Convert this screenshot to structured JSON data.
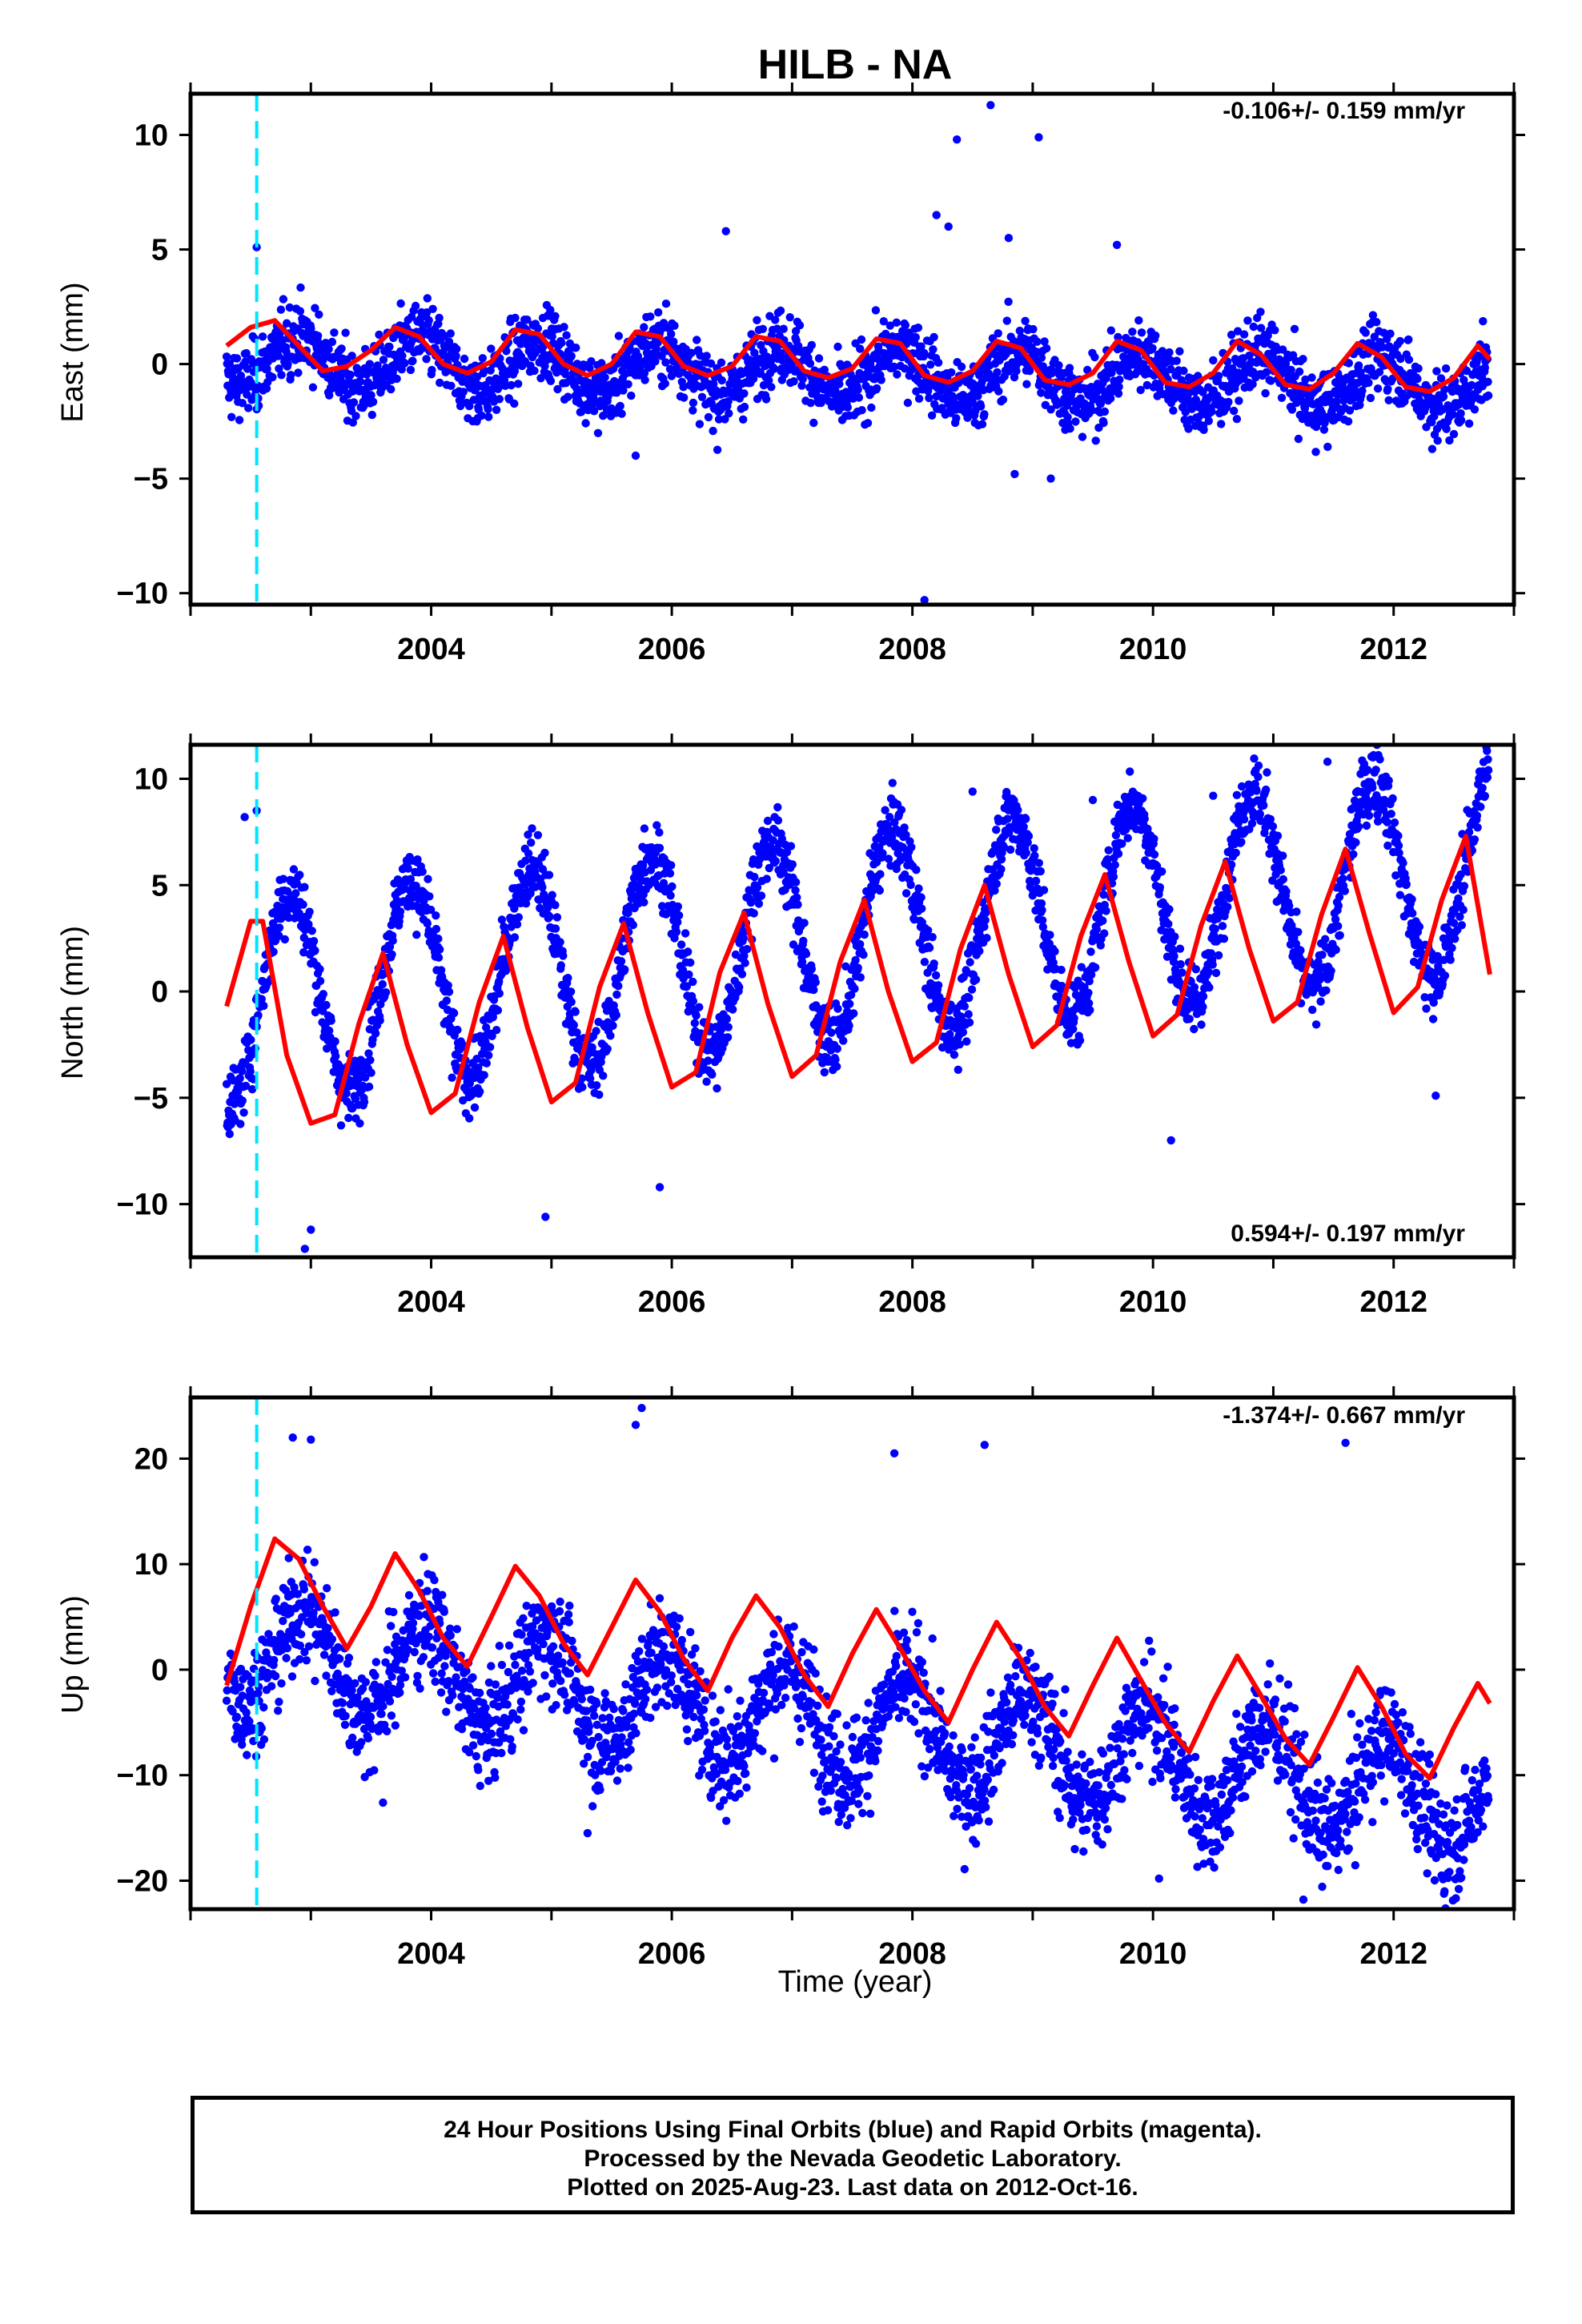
{
  "chart_data": {
    "title": "HILB - NA",
    "xlabel": "Time (year)",
    "x_ticks": [
      "2004",
      "2006",
      "2008",
      "2010",
      "2012"
    ],
    "xlim": [
      2002.0,
      2013.0
    ],
    "vertical_marker_year": 2002.55,
    "colors": {
      "points": "#0000ff",
      "fit": "#ff0000",
      "marker": "#00e5ff"
    },
    "panels": [
      {
        "type": "scatter",
        "name": "east",
        "ylabel": "East (mm)",
        "ylim": [
          -10.5,
          11.8
        ],
        "y_ticks": [
          "10",
          "5",
          "0",
          "−5",
          "−10"
        ],
        "rate": "-0.106+/- 0.159 mm/yr",
        "fit_curve": [
          [
            2002.3,
            0.8
          ],
          [
            2002.5,
            1.6
          ],
          [
            2002.7,
            1.9
          ],
          [
            2002.9,
            0.8
          ],
          [
            2003.1,
            -0.3
          ],
          [
            2003.3,
            -0.1
          ],
          [
            2003.5,
            0.6
          ],
          [
            2003.7,
            1.6
          ],
          [
            2003.9,
            1.2
          ],
          [
            2004.1,
            0.0
          ],
          [
            2004.3,
            -0.4
          ],
          [
            2004.5,
            0.1
          ],
          [
            2004.7,
            1.5
          ],
          [
            2004.9,
            1.3
          ],
          [
            2005.1,
            0.0
          ],
          [
            2005.3,
            -0.5
          ],
          [
            2005.5,
            0.0
          ],
          [
            2005.7,
            1.4
          ],
          [
            2005.9,
            1.2
          ],
          [
            2006.1,
            -0.1
          ],
          [
            2006.3,
            -0.5
          ],
          [
            2006.5,
            -0.1
          ],
          [
            2006.7,
            1.2
          ],
          [
            2006.9,
            1.0
          ],
          [
            2007.1,
            -0.3
          ],
          [
            2007.3,
            -0.6
          ],
          [
            2007.5,
            -0.2
          ],
          [
            2007.7,
            1.1
          ],
          [
            2007.9,
            0.9
          ],
          [
            2008.1,
            -0.5
          ],
          [
            2008.3,
            -0.8
          ],
          [
            2008.5,
            -0.3
          ],
          [
            2008.7,
            1.0
          ],
          [
            2008.9,
            0.7
          ],
          [
            2009.1,
            -0.7
          ],
          [
            2009.3,
            -0.9
          ],
          [
            2009.5,
            -0.4
          ],
          [
            2009.7,
            1.0
          ],
          [
            2009.9,
            0.6
          ],
          [
            2010.1,
            -0.8
          ],
          [
            2010.3,
            -1.0
          ],
          [
            2010.5,
            -0.4
          ],
          [
            2010.7,
            1.0
          ],
          [
            2010.9,
            0.4
          ],
          [
            2011.1,
            -0.9
          ],
          [
            2011.3,
            -1.1
          ],
          [
            2011.5,
            -0.4
          ],
          [
            2011.7,
            0.9
          ],
          [
            2011.9,
            0.3
          ],
          [
            2012.1,
            -1.0
          ],
          [
            2012.3,
            -1.2
          ],
          [
            2012.5,
            -0.6
          ],
          [
            2012.7,
            0.8
          ],
          [
            2012.8,
            0.2
          ]
        ],
        "series_model": {
          "mean": 0.2,
          "trend": -0.106,
          "amplitude": 1.1,
          "phase": 0.65,
          "scatter": 1.2
        },
        "outliers": [
          [
            2002.55,
            5.1
          ],
          [
            2008.1,
            -10.3
          ],
          [
            2008.37,
            9.8
          ],
          [
            2008.65,
            11.3
          ],
          [
            2009.05,
            9.9
          ],
          [
            2008.2,
            6.5
          ],
          [
            2008.3,
            6.0
          ],
          [
            2008.8,
            5.5
          ],
          [
            2009.7,
            5.2
          ],
          [
            2006.45,
            5.8
          ],
          [
            2005.7,
            -4.0
          ],
          [
            2008.85,
            -4.8
          ],
          [
            2009.15,
            -5.0
          ]
        ]
      },
      {
        "type": "scatter",
        "name": "north",
        "ylabel": "North (mm)",
        "ylim": [
          -12.5,
          11.6
        ],
        "y_ticks": [
          "10",
          "5",
          "0",
          "−5",
          "−10"
        ],
        "rate": "0.594+/- 0.197 mm/yr",
        "fit_curve": [
          [
            2002.3,
            -0.7
          ],
          [
            2002.5,
            3.3
          ],
          [
            2002.6,
            3.3
          ],
          [
            2002.8,
            -3.0
          ],
          [
            2003.0,
            -6.2
          ],
          [
            2003.2,
            -5.8
          ],
          [
            2003.4,
            -1.5
          ],
          [
            2003.6,
            1.8
          ],
          [
            2003.8,
            -2.5
          ],
          [
            2004.0,
            -5.7
          ],
          [
            2004.2,
            -4.8
          ],
          [
            2004.4,
            -0.5
          ],
          [
            2004.6,
            2.6
          ],
          [
            2004.8,
            -1.7
          ],
          [
            2005.0,
            -5.2
          ],
          [
            2005.2,
            -4.3
          ],
          [
            2005.4,
            0.2
          ],
          [
            2005.6,
            3.2
          ],
          [
            2005.8,
            -1.0
          ],
          [
            2006.0,
            -4.5
          ],
          [
            2006.2,
            -3.8
          ],
          [
            2006.4,
            0.9
          ],
          [
            2006.6,
            3.7
          ],
          [
            2006.8,
            -0.6
          ],
          [
            2007.0,
            -4.0
          ],
          [
            2007.2,
            -3.0
          ],
          [
            2007.4,
            1.4
          ],
          [
            2007.6,
            4.3
          ],
          [
            2007.8,
            0.0
          ],
          [
            2008.0,
            -3.3
          ],
          [
            2008.2,
            -2.4
          ],
          [
            2008.4,
            2.0
          ],
          [
            2008.6,
            5.0
          ],
          [
            2008.8,
            0.8
          ],
          [
            2009.0,
            -2.6
          ],
          [
            2009.2,
            -1.6
          ],
          [
            2009.4,
            2.6
          ],
          [
            2009.6,
            5.5
          ],
          [
            2009.8,
            1.4
          ],
          [
            2010.0,
            -2.1
          ],
          [
            2010.2,
            -1.1
          ],
          [
            2010.4,
            3.1
          ],
          [
            2010.6,
            6.1
          ],
          [
            2010.8,
            2.0
          ],
          [
            2011.0,
            -1.4
          ],
          [
            2011.2,
            -0.5
          ],
          [
            2011.4,
            3.6
          ],
          [
            2011.6,
            6.7
          ],
          [
            2011.8,
            2.7
          ],
          [
            2012.0,
            -1.0
          ],
          [
            2012.2,
            0.2
          ],
          [
            2012.4,
            4.3
          ],
          [
            2012.6,
            7.3
          ],
          [
            2012.8,
            0.8
          ]
        ],
        "series_model": {
          "mean": -0.5,
          "trend": 0.594,
          "amplitude": 4.8,
          "phase": 0.58,
          "scatter": 1.3
        },
        "outliers": [
          [
            2002.45,
            8.2
          ],
          [
            2002.55,
            8.5
          ],
          [
            2011.45,
            10.8
          ],
          [
            2008.5,
            9.4
          ],
          [
            2009.5,
            9.0
          ],
          [
            2010.5,
            9.2
          ],
          [
            2002.95,
            -12.1
          ],
          [
            2003.0,
            -11.2
          ],
          [
            2004.95,
            -10.6
          ],
          [
            2005.9,
            -9.2
          ],
          [
            2012.35,
            -4.9
          ],
          [
            2010.15,
            -7.0
          ]
        ]
      },
      {
        "type": "scatter",
        "name": "up",
        "ylabel": "Up (mm)",
        "ylim": [
          -22.7,
          25.8
        ],
        "y_ticks": [
          "20",
          "10",
          "0",
          "−10",
          "−20"
        ],
        "rate": "-1.374+/- 0.667 mm/yr",
        "fit_curve": [
          [
            2002.3,
            -1.5
          ],
          [
            2002.5,
            6.0
          ],
          [
            2002.7,
            12.4
          ],
          [
            2002.9,
            10.5
          ],
          [
            2003.1,
            6.0
          ],
          [
            2003.3,
            2.0
          ],
          [
            2003.5,
            6.0
          ],
          [
            2003.7,
            11.0
          ],
          [
            2003.9,
            7.5
          ],
          [
            2004.1,
            3.0
          ],
          [
            2004.3,
            0.3
          ],
          [
            2004.5,
            5.0
          ],
          [
            2004.7,
            9.8
          ],
          [
            2004.9,
            7.0
          ],
          [
            2005.1,
            2.5
          ],
          [
            2005.3,
            -0.5
          ],
          [
            2005.5,
            4.0
          ],
          [
            2005.7,
            8.5
          ],
          [
            2005.9,
            5.5
          ],
          [
            2006.1,
            1.0
          ],
          [
            2006.3,
            -2.0
          ],
          [
            2006.5,
            3.0
          ],
          [
            2006.7,
            7.0
          ],
          [
            2006.9,
            4.0
          ],
          [
            2007.1,
            -0.5
          ],
          [
            2007.3,
            -3.5
          ],
          [
            2007.5,
            1.5
          ],
          [
            2007.7,
            5.7
          ],
          [
            2007.9,
            2.0
          ],
          [
            2008.1,
            -2.0
          ],
          [
            2008.3,
            -5.0
          ],
          [
            2008.5,
            0.0
          ],
          [
            2008.7,
            4.5
          ],
          [
            2008.9,
            1.0
          ],
          [
            2009.1,
            -3.5
          ],
          [
            2009.3,
            -6.3
          ],
          [
            2009.5,
            -1.5
          ],
          [
            2009.7,
            3.0
          ],
          [
            2009.9,
            -1.0
          ],
          [
            2010.1,
            -5.0
          ],
          [
            2010.3,
            -7.8
          ],
          [
            2010.5,
            -3.0
          ],
          [
            2010.7,
            1.3
          ],
          [
            2010.9,
            -2.5
          ],
          [
            2011.1,
            -6.5
          ],
          [
            2011.3,
            -9.0
          ],
          [
            2011.5,
            -4.5
          ],
          [
            2011.7,
            0.2
          ],
          [
            2011.9,
            -3.5
          ],
          [
            2012.1,
            -8.0
          ],
          [
            2012.3,
            -10.3
          ],
          [
            2012.5,
            -5.5
          ],
          [
            2012.7,
            -1.3
          ],
          [
            2012.8,
            -3.2
          ]
        ],
        "series_model": {
          "mean": 2.0,
          "trend": -1.374,
          "amplitude": 4.8,
          "phase": 0.7,
          "scatter": 4.0
        },
        "outliers": [
          [
            2005.75,
            24.8
          ],
          [
            2005.7,
            23.2
          ],
          [
            2002.85,
            22.0
          ],
          [
            2003.0,
            21.8
          ],
          [
            2007.85,
            20.5
          ],
          [
            2008.6,
            21.3
          ],
          [
            2011.6,
            21.5
          ],
          [
            2011.25,
            -21.8
          ],
          [
            2010.05,
            -19.8
          ],
          [
            2012.45,
            -19.3
          ],
          [
            2003.6,
            -12.6
          ],
          [
            2009.35,
            -17.0
          ],
          [
            2012.2,
            -17.0
          ],
          [
            2005.3,
            -15.5
          ]
        ]
      }
    ]
  },
  "footer": {
    "line1": "24 Hour Positions Using Final Orbits (blue) and Rapid Orbits (magenta).",
    "line2": "Processed by the Nevada Geodetic Laboratory.",
    "line3": "Plotted on 2025-Aug-23. Last data on 2012-Oct-16."
  }
}
